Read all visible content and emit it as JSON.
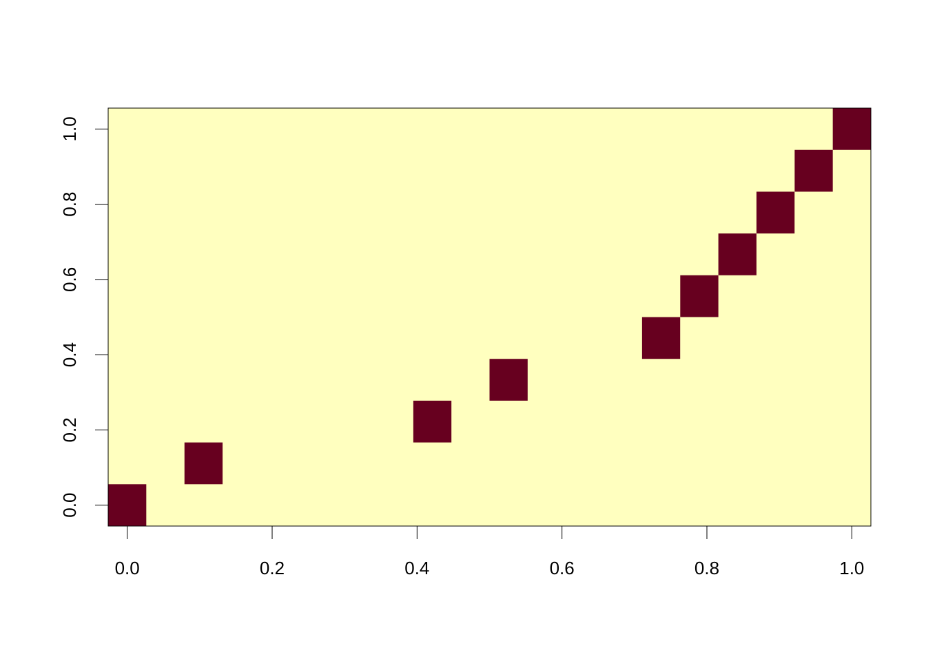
{
  "chart_data": {
    "type": "heatmap",
    "title": "",
    "xlabel": "",
    "ylabel": "",
    "grid": false,
    "legend": "none",
    "x_centers": [
      0.0,
      0.1,
      0.2,
      0.3,
      0.4,
      0.5,
      0.6,
      0.7,
      0.8,
      0.9,
      1.0
    ],
    "y_centers": [
      0.0,
      0.1,
      0.2,
      0.3,
      0.4,
      0.5,
      0.6,
      0.7,
      0.8,
      0.9,
      1.0
    ],
    "cell_width": 0.0526,
    "cell_height": 0.1111,
    "xlim": [
      -0.0263,
      1.0263
    ],
    "ylim": [
      -0.0556,
      1.0556
    ],
    "x_ticks": [
      "0.0",
      "0.2",
      "0.4",
      "0.6",
      "0.8",
      "1.0"
    ],
    "y_ticks": [
      "0.0",
      "0.2",
      "0.4",
      "0.6",
      "0.8",
      "1.0"
    ],
    "background_value": 0,
    "highlighted_cells": [
      {
        "x": 0.0,
        "y": 0.0,
        "value": 1
      },
      {
        "x": 0.1053,
        "y": 0.1111,
        "value": 1
      },
      {
        "x": 0.4211,
        "y": 0.2222,
        "value": 1
      },
      {
        "x": 0.5263,
        "y": 0.3333,
        "value": 1
      },
      {
        "x": 0.7368,
        "y": 0.4444,
        "value": 1
      },
      {
        "x": 0.7895,
        "y": 0.5556,
        "value": 1
      },
      {
        "x": 0.8421,
        "y": 0.6667,
        "value": 1
      },
      {
        "x": 0.8947,
        "y": 0.7778,
        "value": 1
      },
      {
        "x": 0.9474,
        "y": 0.8889,
        "value": 1
      },
      {
        "x": 1.0,
        "y": 1.0,
        "value": 1
      }
    ],
    "colors": {
      "low": "#FFFFBF",
      "high": "#67001F",
      "axis": "#000000"
    }
  }
}
